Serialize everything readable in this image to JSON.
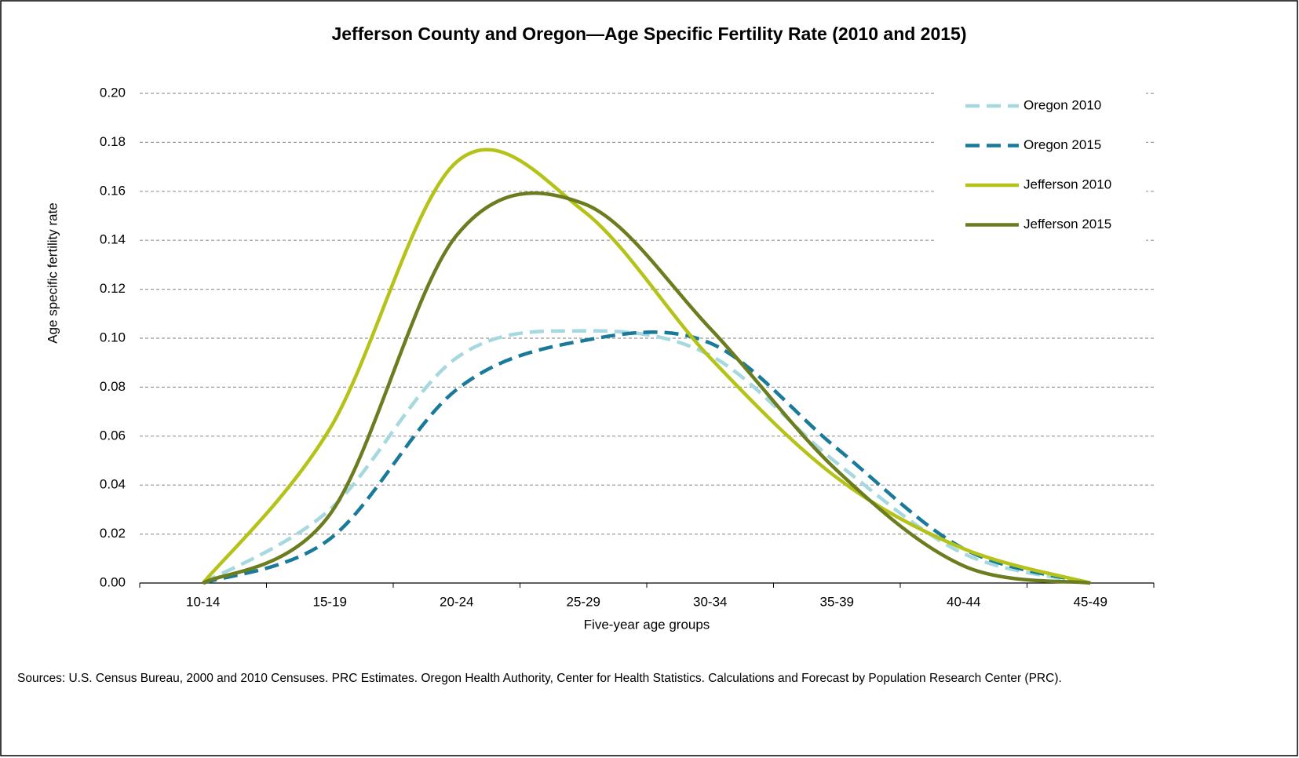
{
  "chart_data": {
    "type": "line",
    "title": "Jefferson County and Oregon—Age Specific Fertility Rate (2010 and 2015)",
    "xlabel": "Five-year age groups",
    "ylabel": "Age specific fertility rate",
    "categories": [
      "10-14",
      "15-19",
      "20-24",
      "25-29",
      "30-34",
      "35-39",
      "40-44",
      "45-49"
    ],
    "series": [
      {
        "name": "Oregon 2010",
        "color": "#a6d8e0",
        "style": "dashed",
        "values": [
          0,
          0.03,
          0.092,
          0.103,
          0.093,
          0.049,
          0.012,
          0
        ]
      },
      {
        "name": "Oregon 2015",
        "color": "#1a7a9a",
        "style": "dashed",
        "values": [
          0,
          0.018,
          0.079,
          0.099,
          0.098,
          0.055,
          0.014,
          0
        ]
      },
      {
        "name": "Jefferson 2010",
        "color": "#b5c217",
        "style": "solid",
        "values": [
          0,
          0.063,
          0.172,
          0.152,
          0.092,
          0.043,
          0.014,
          0
        ]
      },
      {
        "name": "Jefferson 2015",
        "color": "#6b7d1f",
        "style": "solid",
        "values": [
          0,
          0.028,
          0.142,
          0.155,
          0.104,
          0.046,
          0.007,
          0
        ]
      }
    ],
    "ylim": [
      0,
      0.2
    ],
    "yticks": [
      {
        "value": 0,
        "label": "0.00"
      },
      {
        "value": 0.02,
        "label": "0.02"
      },
      {
        "value": 0.04,
        "label": "0.04"
      },
      {
        "value": 0.06,
        "label": "0.06"
      },
      {
        "value": 0.08,
        "label": "0.08"
      },
      {
        "value": 0.1,
        "label": "0.10"
      },
      {
        "value": 0.12,
        "label": "0.12"
      },
      {
        "value": 0.14,
        "label": "0.14"
      },
      {
        "value": 0.16,
        "label": "0.16"
      },
      {
        "value": 0.18,
        "label": "0.18"
      },
      {
        "value": 0.2,
        "label": "0.20"
      }
    ],
    "grid": true,
    "smooth": true,
    "legend": "upper right",
    "source": "Sources: U.S. Census Bureau, 2000 and 2010 Censuses. PRC Estimates. Oregon Health Authority, Center for Health Statistics. Calculations and Forecast by Population Research Center (PRC)."
  }
}
